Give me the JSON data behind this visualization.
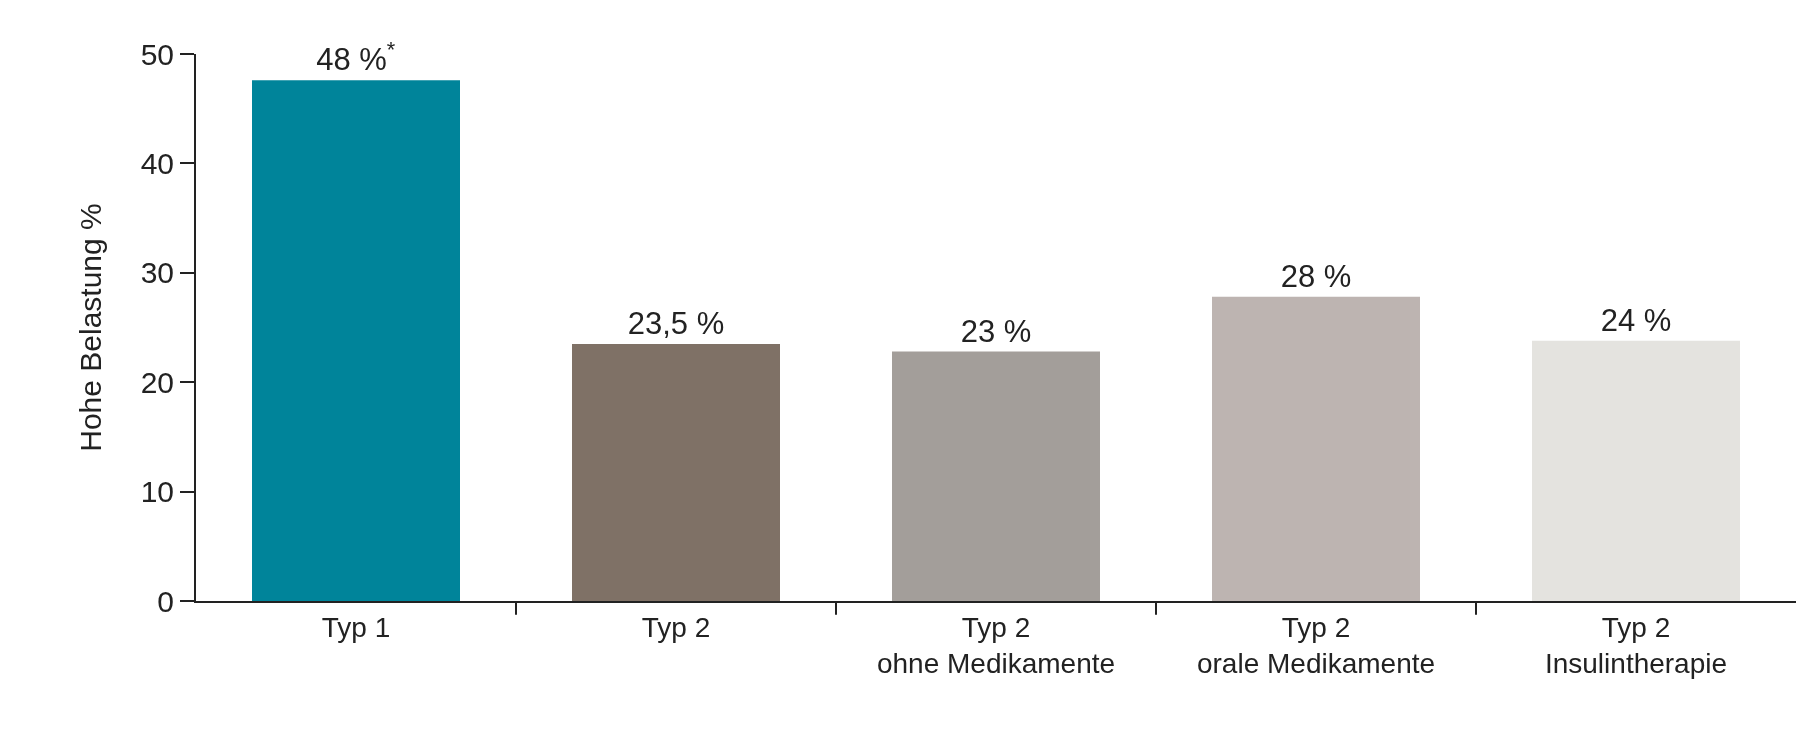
{
  "chart_data": {
    "type": "bar",
    "ylabel": "Hohe Belastung %",
    "categories": [
      "Typ 1",
      "Typ 2",
      "Typ 2\nohne Medikamente",
      "Typ 2\norale Medikamente",
      "Typ 2\nInsulintherapie"
    ],
    "values": [
      47.6,
      23.5,
      22.8,
      27.8,
      23.8
    ],
    "value_labels": [
      "48 %$^{*}$",
      "23,5 %",
      "23 %",
      "28 %",
      "24 %"
    ],
    "colors": [
      "#00849a",
      "#7f7166",
      "#a39e9a",
      "#bdb4b1",
      "#e4e3df"
    ],
    "ylim": [
      0,
      50
    ],
    "yticks": [
      0,
      10,
      20,
      30,
      40,
      50
    ],
    "legend": false
  }
}
